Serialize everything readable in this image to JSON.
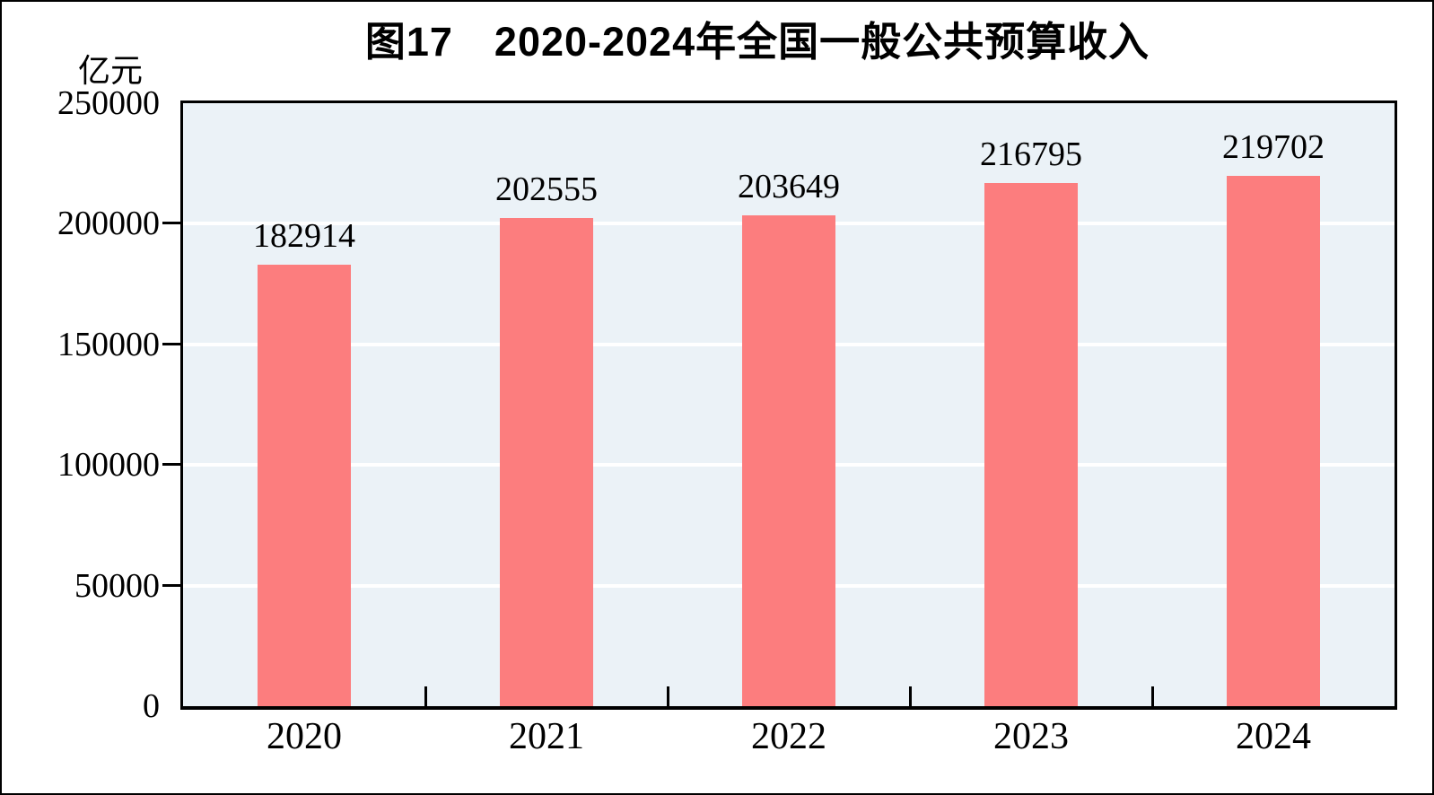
{
  "chart_data": {
    "type": "bar",
    "title": "图17　2020-2024年全国一般公共预算收入",
    "unit_label": "亿元",
    "categories": [
      "2020",
      "2021",
      "2022",
      "2023",
      "2024"
    ],
    "values": [
      182914,
      202555,
      203649,
      216795,
      219702
    ],
    "value_labels": [
      "182914",
      "202555",
      "203649",
      "216795",
      "219702"
    ],
    "ylim": [
      0,
      250000
    ],
    "yticks": [
      0,
      50000,
      100000,
      150000,
      200000,
      250000
    ],
    "ytick_labels": [
      "0",
      "50000",
      "100000",
      "150000",
      "200000",
      "250000"
    ],
    "grid": "horizontal",
    "legend": "none",
    "colors": {
      "bar": "#FC7D7E",
      "plot_background": "#EBF2F7",
      "gridline": "#FFFFFF",
      "axis": "#000000",
      "text": "#000000"
    }
  }
}
